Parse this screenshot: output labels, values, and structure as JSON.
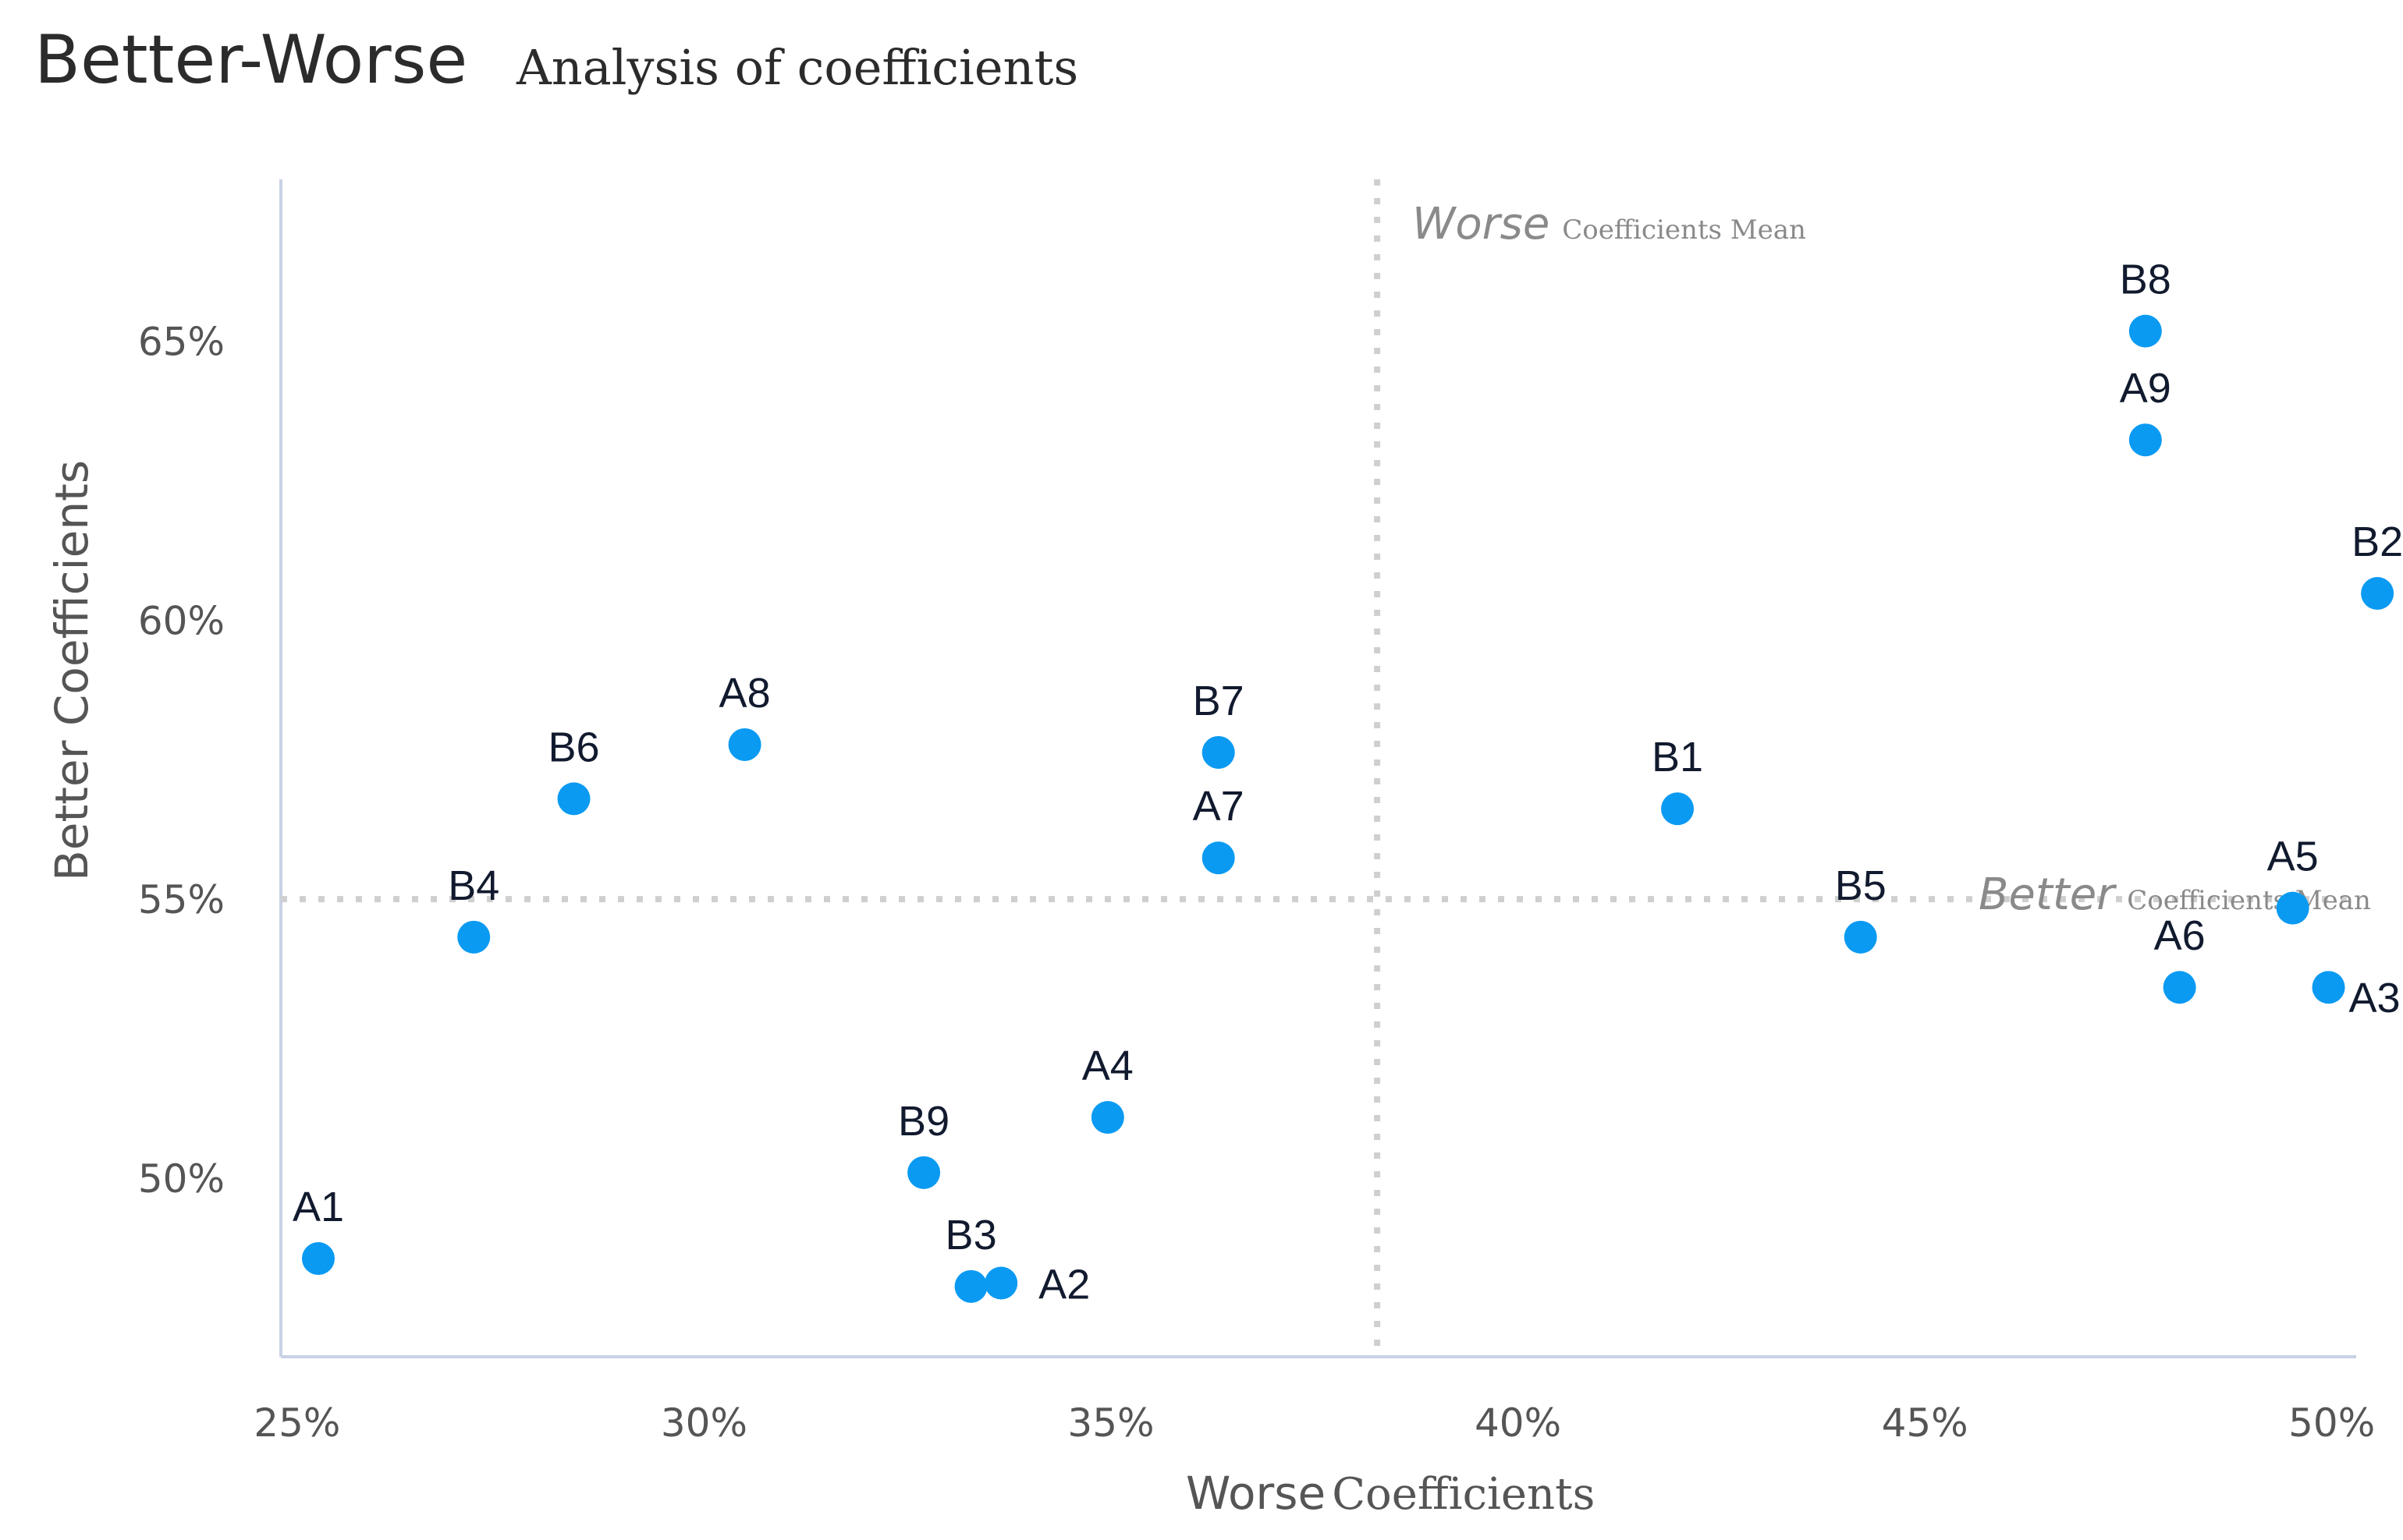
{
  "chart_data": {
    "type": "scatter",
    "title": "Better-Worse",
    "subtitle": "Analysis of coefficients",
    "xlabel_main": "Worse",
    "xlabel_sub": "Coefficients",
    "ylabel": "Better Coefficients",
    "xlim": [
      0.248,
      0.503
    ],
    "ylim": [
      0.468,
      0.679
    ],
    "x_ticks": [
      0.25,
      0.3,
      0.35,
      0.4,
      0.45,
      0.5
    ],
    "x_tick_labels": [
      "25%",
      "30%",
      "35%",
      "40%",
      "45%",
      "50%"
    ],
    "y_ticks": [
      0.5,
      0.55,
      0.6,
      0.65
    ],
    "y_tick_labels": [
      "50%",
      "55%",
      "60%",
      "65%"
    ],
    "grid": false,
    "point_color": "#0a9af2",
    "mean_line_color": "#cfcfcf",
    "axis_color": "#c8d2e6",
    "mean_lines": {
      "worse_x": 0.3827,
      "better_y": 0.55,
      "worse_label_main": "Worse",
      "worse_label_sub": "Coefficients Mean",
      "better_label_main": "Better",
      "better_label_sub": "Coefficients Mean"
    },
    "points": [
      {
        "label": "A1",
        "x": 0.2526,
        "y": 0.4856,
        "pos": "above"
      },
      {
        "label": "A2",
        "x": 0.3365,
        "y": 0.4812,
        "pos": "right"
      },
      {
        "label": "A3",
        "x": 0.4996,
        "y": 0.5342,
        "pos": "right-below"
      },
      {
        "label": "A4",
        "x": 0.3496,
        "y": 0.5109,
        "pos": "above"
      },
      {
        "label": "A5",
        "x": 0.4952,
        "y": 0.5484,
        "pos": "above"
      },
      {
        "label": "A6",
        "x": 0.4813,
        "y": 0.5342,
        "pos": "above"
      },
      {
        "label": "A7",
        "x": 0.3632,
        "y": 0.5574,
        "pos": "above"
      },
      {
        "label": "A8",
        "x": 0.305,
        "y": 0.5777,
        "pos": "above"
      },
      {
        "label": "A9",
        "x": 0.4771,
        "y": 0.6323,
        "pos": "above"
      },
      {
        "label": "B1",
        "x": 0.4196,
        "y": 0.5662,
        "pos": "above"
      },
      {
        "label": "B2",
        "x": 0.5056,
        "y": 0.6048,
        "pos": "above"
      },
      {
        "label": "B3",
        "x": 0.3328,
        "y": 0.4806,
        "pos": "above"
      },
      {
        "label": "B4",
        "x": 0.2717,
        "y": 0.5432,
        "pos": "above"
      },
      {
        "label": "B5",
        "x": 0.4421,
        "y": 0.5432,
        "pos": "above"
      },
      {
        "label": "B6",
        "x": 0.284,
        "y": 0.568,
        "pos": "above"
      },
      {
        "label": "B7",
        "x": 0.3632,
        "y": 0.5763,
        "pos": "above"
      },
      {
        "label": "B8",
        "x": 0.4771,
        "y": 0.6518,
        "pos": "above"
      },
      {
        "label": "B9",
        "x": 0.327,
        "y": 0.501,
        "pos": "above"
      }
    ]
  }
}
